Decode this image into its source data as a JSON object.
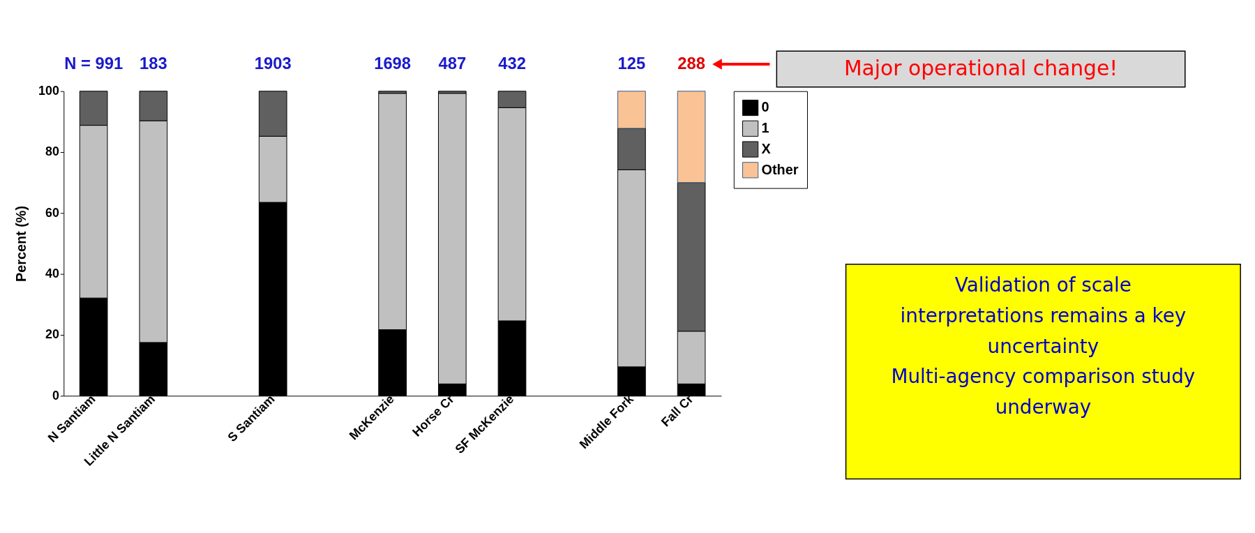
{
  "chart_data": {
    "type": "bar",
    "stacked": true,
    "ylabel": "Percent (%)",
    "categories": [
      "N Santiam",
      "Little N Santiam",
      null,
      "S Santiam",
      null,
      "McKenzie",
      "Horse Cr",
      "SF McKenzie",
      null,
      "Middle Fork",
      "Fall Cr"
    ],
    "series": [
      {
        "name": "0",
        "color": "#000000",
        "values": [
          32.1,
          17.5,
          null,
          63.5,
          null,
          21.7,
          3.9,
          24.6,
          null,
          9.5,
          3.9
        ]
      },
      {
        "name": "1",
        "color": "#c0c0c0",
        "values": [
          56.7,
          72.8,
          null,
          21.7,
          null,
          77.6,
          95.4,
          70.0,
          null,
          64.7,
          17.3
        ]
      },
      {
        "name": "X",
        "color": "#606060",
        "values": [
          11.2,
          9.7,
          null,
          14.8,
          null,
          0.7,
          0.7,
          5.4,
          null,
          13.6,
          48.8
        ]
      },
      {
        "name": "Other",
        "color": "#f9c396",
        "values": [
          null,
          null,
          null,
          null,
          null,
          null,
          null,
          null,
          null,
          12.2,
          30.0
        ]
      }
    ],
    "ylim": [
      0,
      100
    ],
    "yticks": [
      0,
      20,
      40,
      60,
      80,
      100
    ],
    "grid": false,
    "legend": "right",
    "annotations": [
      "N = 991",
      "183",
      "1903",
      "1698",
      "487",
      "432",
      "125",
      "288",
      "Major operational change!",
      "Validation of scale\ninterpretations remains a key\nuncertainty\n\nMulti-agency comparison study\nunderway"
    ]
  }
}
